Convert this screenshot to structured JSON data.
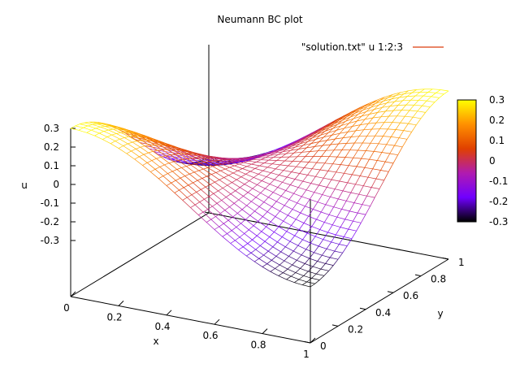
{
  "chart_data": {
    "type": "surface",
    "title": "Neumann BC plot",
    "xlabel": "x",
    "ylabel": "y",
    "zlabel": "u",
    "xlim": [
      0,
      1
    ],
    "ylim": [
      0,
      1
    ],
    "zlim": [
      -0.3,
      0.3
    ],
    "x_ticks": [
      "0",
      "0.2",
      "0.4",
      "0.6",
      "0.8",
      "1"
    ],
    "y_ticks": [
      "0",
      "0.2",
      "0.4",
      "0.6",
      "0.8",
      "1"
    ],
    "z_ticks": [
      "0.3",
      "0.2",
      "0.1",
      "0",
      "-0.1",
      "-0.2",
      "-0.3"
    ],
    "colorbar_ticks": [
      "0.3",
      "0.2",
      "0.1",
      "0",
      "-0.1",
      "-0.2",
      "-0.3"
    ],
    "legend": {
      "label": "\"solution.txt\" u 1:2:3",
      "placement": "top-right"
    },
    "surface_function": "u(x,y) = 0.3 * cos(pi*x) * cos(pi*y)",
    "grid_samples": 30,
    "palette": [
      "#000000",
      "#7000ff",
      "#b01bb0",
      "#e04000",
      "#ff9000",
      "#ffff00"
    ]
  }
}
